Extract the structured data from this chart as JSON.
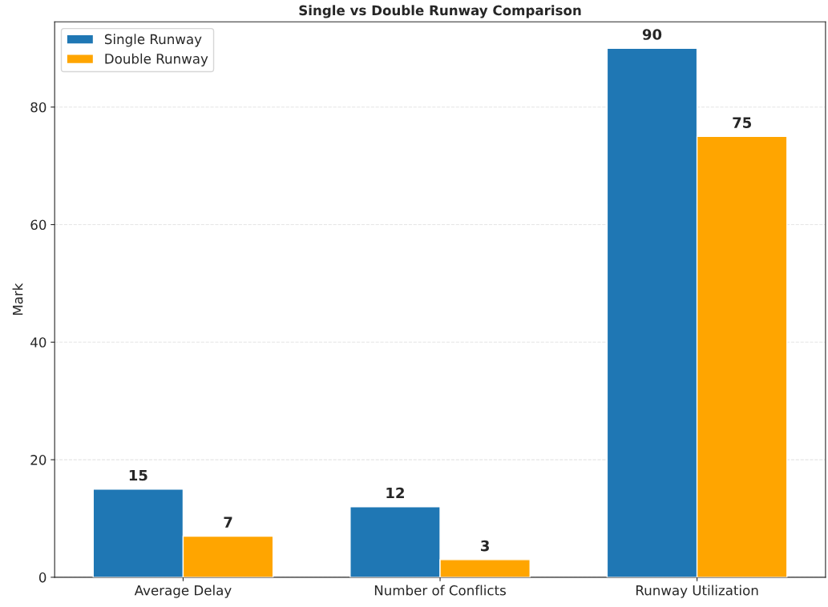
{
  "chart_data": {
    "type": "bar",
    "title": "Single vs Double Runway Comparison",
    "ylabel": "Mark",
    "categories": [
      "Average Delay",
      "Number of Conflicts",
      "Runway Utilization"
    ],
    "series": [
      {
        "name": "Single Runway",
        "color": "#1f77b4",
        "values": [
          15,
          12,
          90
        ]
      },
      {
        "name": "Double Runway",
        "color": "#ffa500",
        "values": [
          7,
          3,
          75
        ]
      }
    ],
    "ylim": [
      0,
      94.5
    ],
    "yticks": [
      0,
      20,
      40,
      60,
      80
    ],
    "grid": "y",
    "legend": "top left",
    "data_labels": true
  }
}
